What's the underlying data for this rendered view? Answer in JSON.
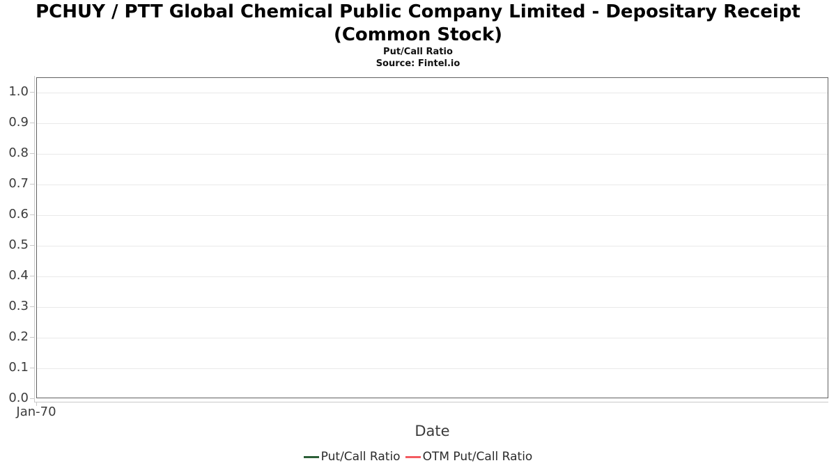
{
  "header": {
    "title_lines": [
      "PCHUY / PTT Global Chemical Public Company Limited - Depositary Receipt",
      "(Common Stock)"
    ],
    "subtitle": "Put/Call Ratio",
    "source": "Source: Fintel.io"
  },
  "chart_data": {
    "type": "line",
    "title": "PCHUY / PTT Global Chemical Public Company Limited - Depositary Receipt (Common Stock)",
    "subtitle": "Put/Call Ratio",
    "source": "Source: Fintel.io",
    "xlabel": "Date",
    "ylabel": "",
    "x_tick_labels": [
      "Jan-70"
    ],
    "y_tick_labels": [
      "0.0",
      "0.1",
      "0.2",
      "0.3",
      "0.4",
      "0.5",
      "0.6",
      "0.7",
      "0.8",
      "0.9",
      "1.0"
    ],
    "ylim": [
      0.0,
      1.048
    ],
    "grid": true,
    "legend_position": "bottom",
    "series": [
      {
        "name": "Put/Call Ratio",
        "color": "#2c5f38",
        "x": [],
        "values": []
      },
      {
        "name": "OTM Put/Call Ratio",
        "color": "#f35b60",
        "x": [],
        "values": []
      }
    ]
  },
  "colors": {
    "plot_border": "#616161",
    "gridline": "#e9e9e9",
    "axis_line": "#c9c9c9",
    "tick_text": "#3c3c3c",
    "title_text": "#000000",
    "background": "#ffffff"
  }
}
